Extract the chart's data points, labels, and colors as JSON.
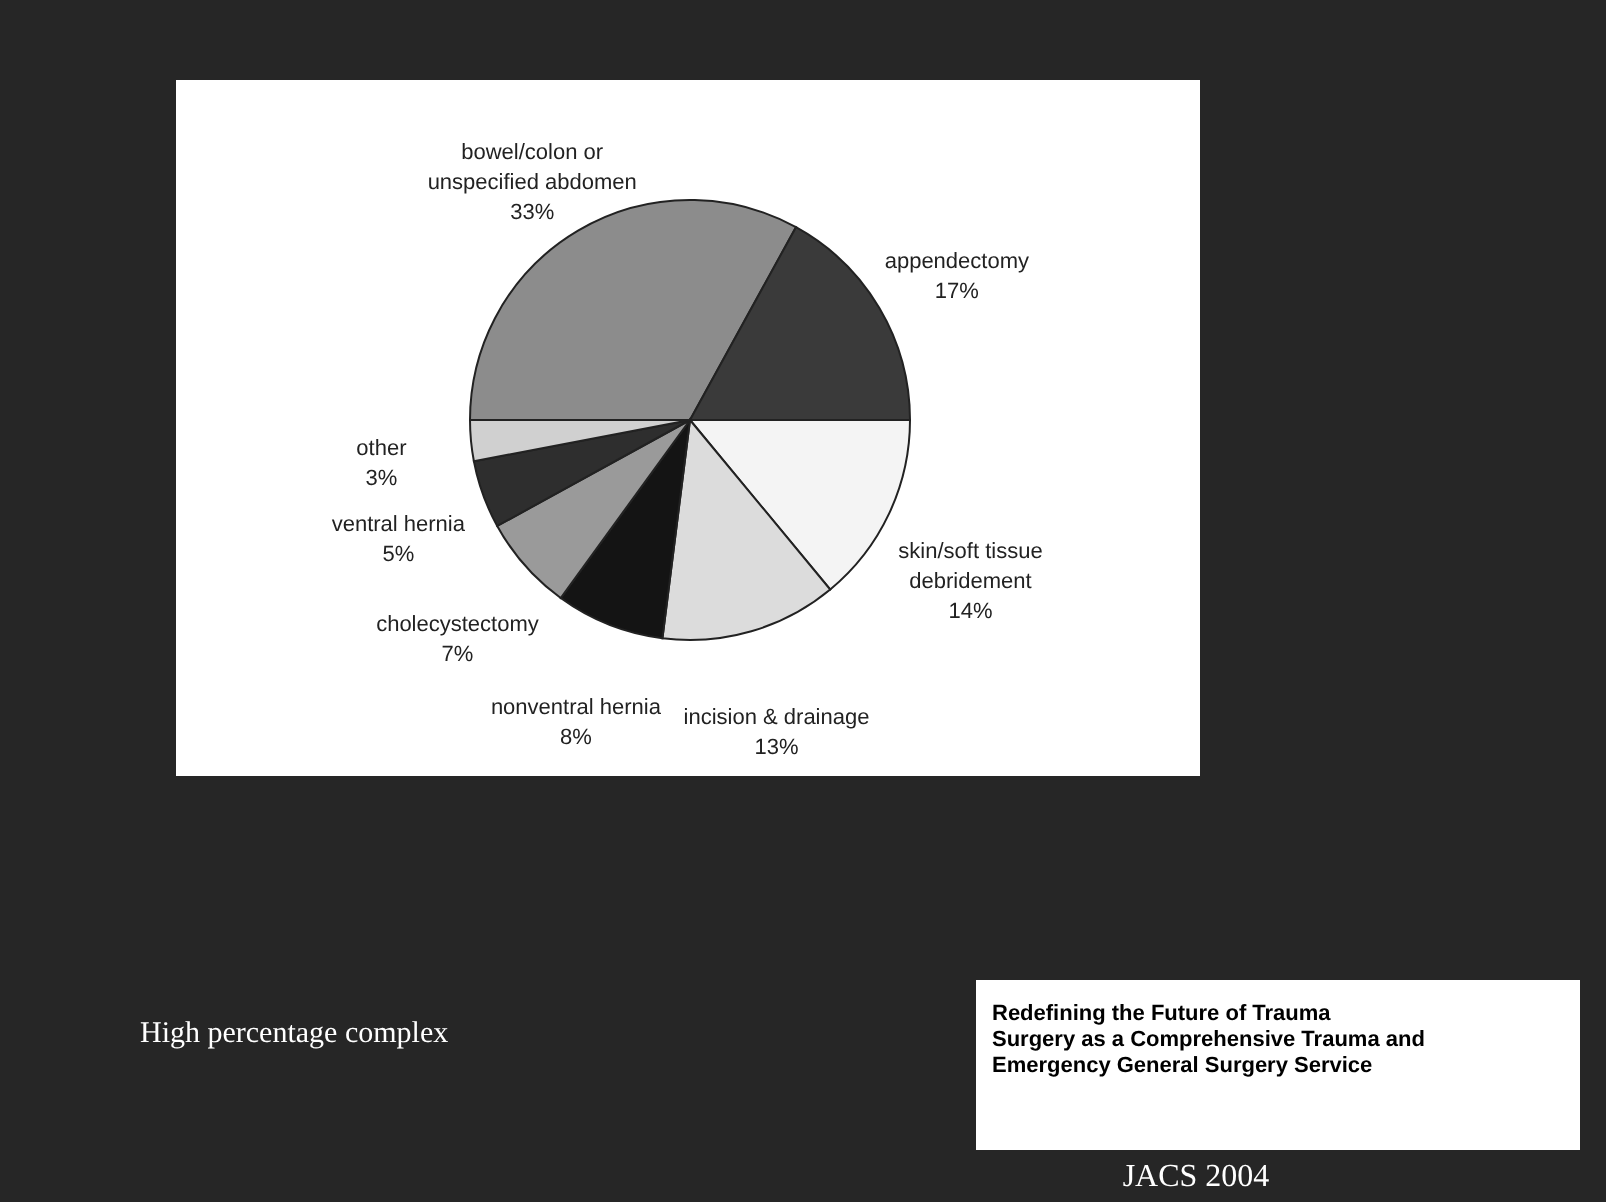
{
  "chart_data": {
    "type": "pie",
    "categories": [
      "bowel/colon or unspecified abdomen",
      "appendectomy",
      "skin/soft tissue debridement",
      "incision & drainage",
      "nonventral hernia",
      "cholecystectomy",
      "ventral hernia",
      "other"
    ],
    "values": [
      33,
      17,
      14,
      13,
      8,
      7,
      5,
      3
    ],
    "value_labels": [
      "33%",
      "17%",
      "14%",
      "13%",
      "8%",
      "7%",
      "5%",
      "3%"
    ],
    "colors": [
      "#8c8c8c",
      "#3a3a3a",
      "#f4f4f4",
      "#dcdcdc",
      "#141414",
      "#9a9a9a",
      "#2e2e2e",
      "#d0d0d0"
    ],
    "annotations": [
      "High percentage complex",
      "Redefining the Future of Trauma Surgery as a Comprehensive Trauma and Emergency General Surgery Service",
      "JACS 2004"
    ]
  }
}
